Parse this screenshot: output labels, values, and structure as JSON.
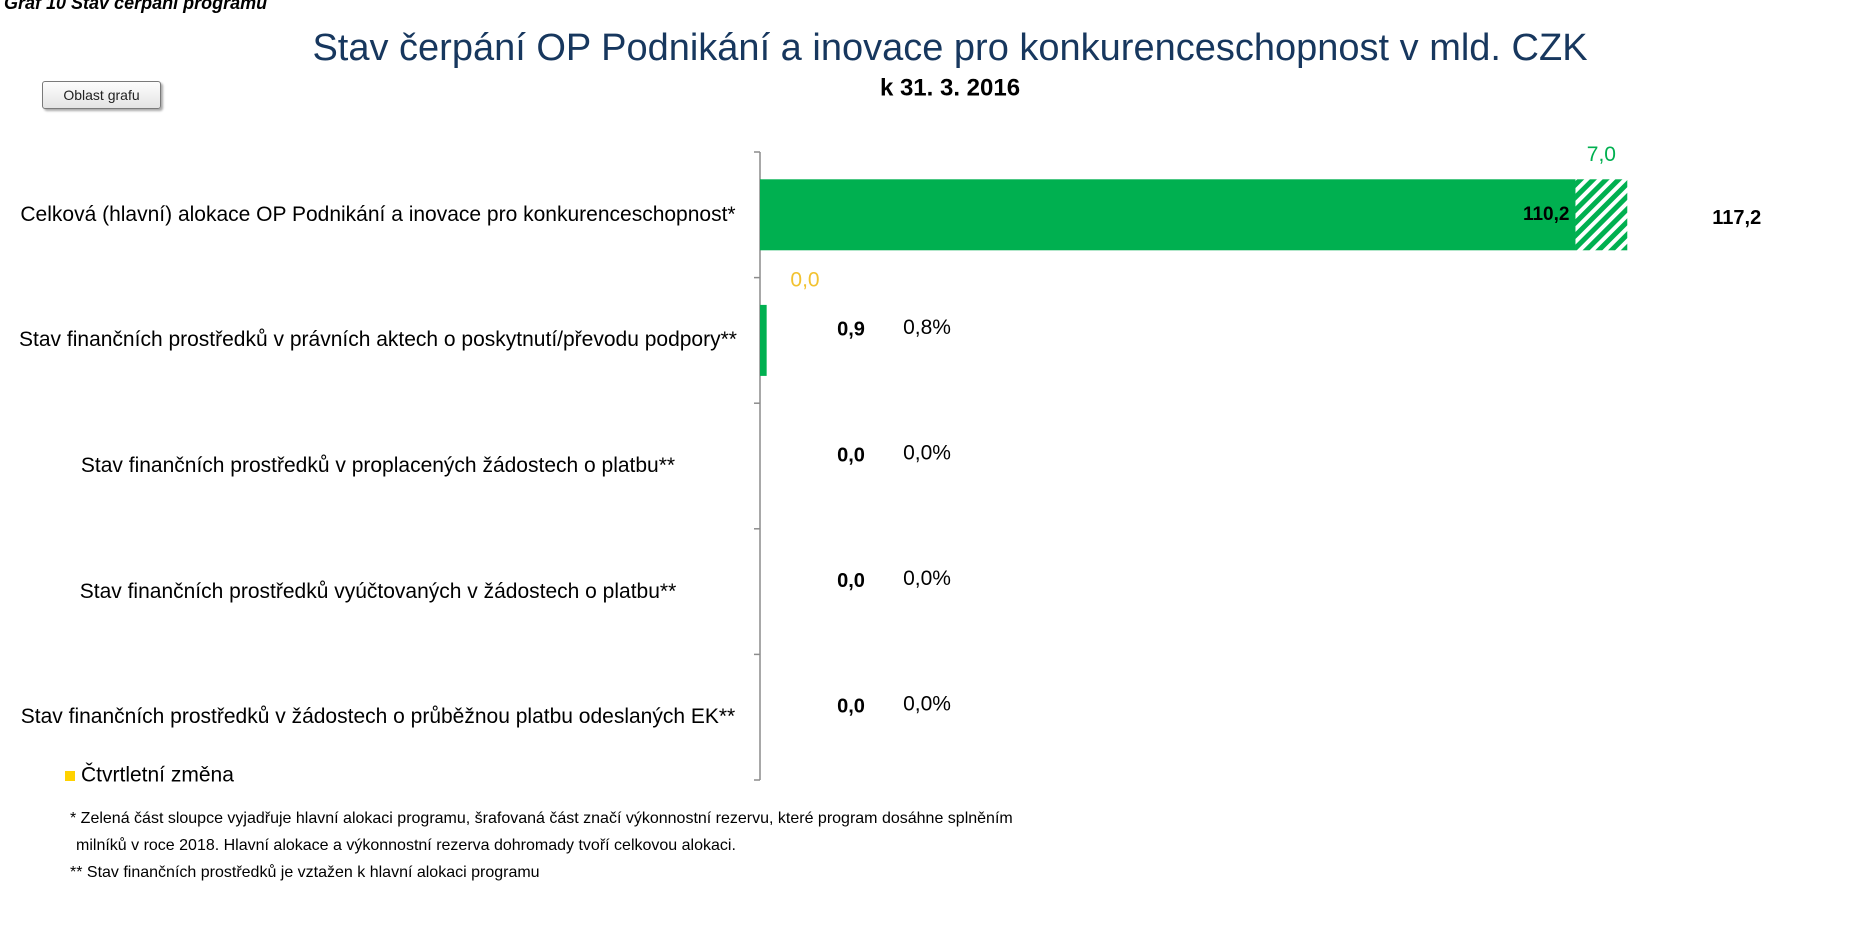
{
  "caption": "Graf 10 Stav čerpání programu",
  "button": "Oblast grafu",
  "chart_data": {
    "type": "bar",
    "orientation": "horizontal",
    "title": "Stav čerpání OP Podnikání a inovace pro konkurenceschopnost v mld. CZK",
    "subtitle": "k 31. 3. 2016",
    "categories": [
      "Celková (hlavní) alokace OP Podnikání a inovace pro konkurenceschopnost*",
      "Stav finančních prostředků v právních aktech o poskytnutí/převodu podpory**",
      "Stav finančních prostředků v proplacených žádostech o platbu**",
      "Stav finančních prostředků vyúčtovaných v žádostech o platbu**",
      "Stav finančních prostředků v žádostech o průběžnou platbu odeslaných EK**"
    ],
    "series": [
      {
        "color": "#00b050",
        "label_color": "#000000",
        "values": [
          110.2,
          0.9,
          0.0,
          0.0,
          0.0
        ],
        "value_labels": [
          "110,2",
          "0,9",
          "0,0",
          "0,0",
          "0,0"
        ]
      },
      {
        "color": "#00b050",
        "pattern": "hatch",
        "label_color": "#00b050",
        "values": [
          7.0,
          null,
          null,
          null,
          null
        ],
        "value_labels": [
          "7,0",
          null,
          null,
          null,
          null
        ]
      },
      {
        "name": "Čtvrtletní změna",
        "color": "#ffd200",
        "label_color": "#f2c230",
        "values": [
          null,
          0.0,
          null,
          null,
          null
        ],
        "value_labels": [
          null,
          "0,0",
          null,
          null,
          null
        ]
      }
    ],
    "total_labels": [
      "117,2",
      null,
      null,
      null,
      null
    ],
    "percent_labels": [
      null,
      "0,8%",
      "0,0%",
      "0,0%",
      "0,0%"
    ],
    "xlim": [
      0,
      120
    ],
    "legend": "bottom-left",
    "footnotes": [
      "* Zelená část sloupce vyjadřuje hlavní alokaci programu, šrafovaná část značí výkonnostní rezervu, které program dosáhne splněním",
      "milníků v roce 2018.  Hlavní alokace a výkonnostní rezerva dohromady tvoří celkovou alokaci.",
      "** Stav finančních prostředků je vztažen k hlavní alokaci programu"
    ]
  }
}
